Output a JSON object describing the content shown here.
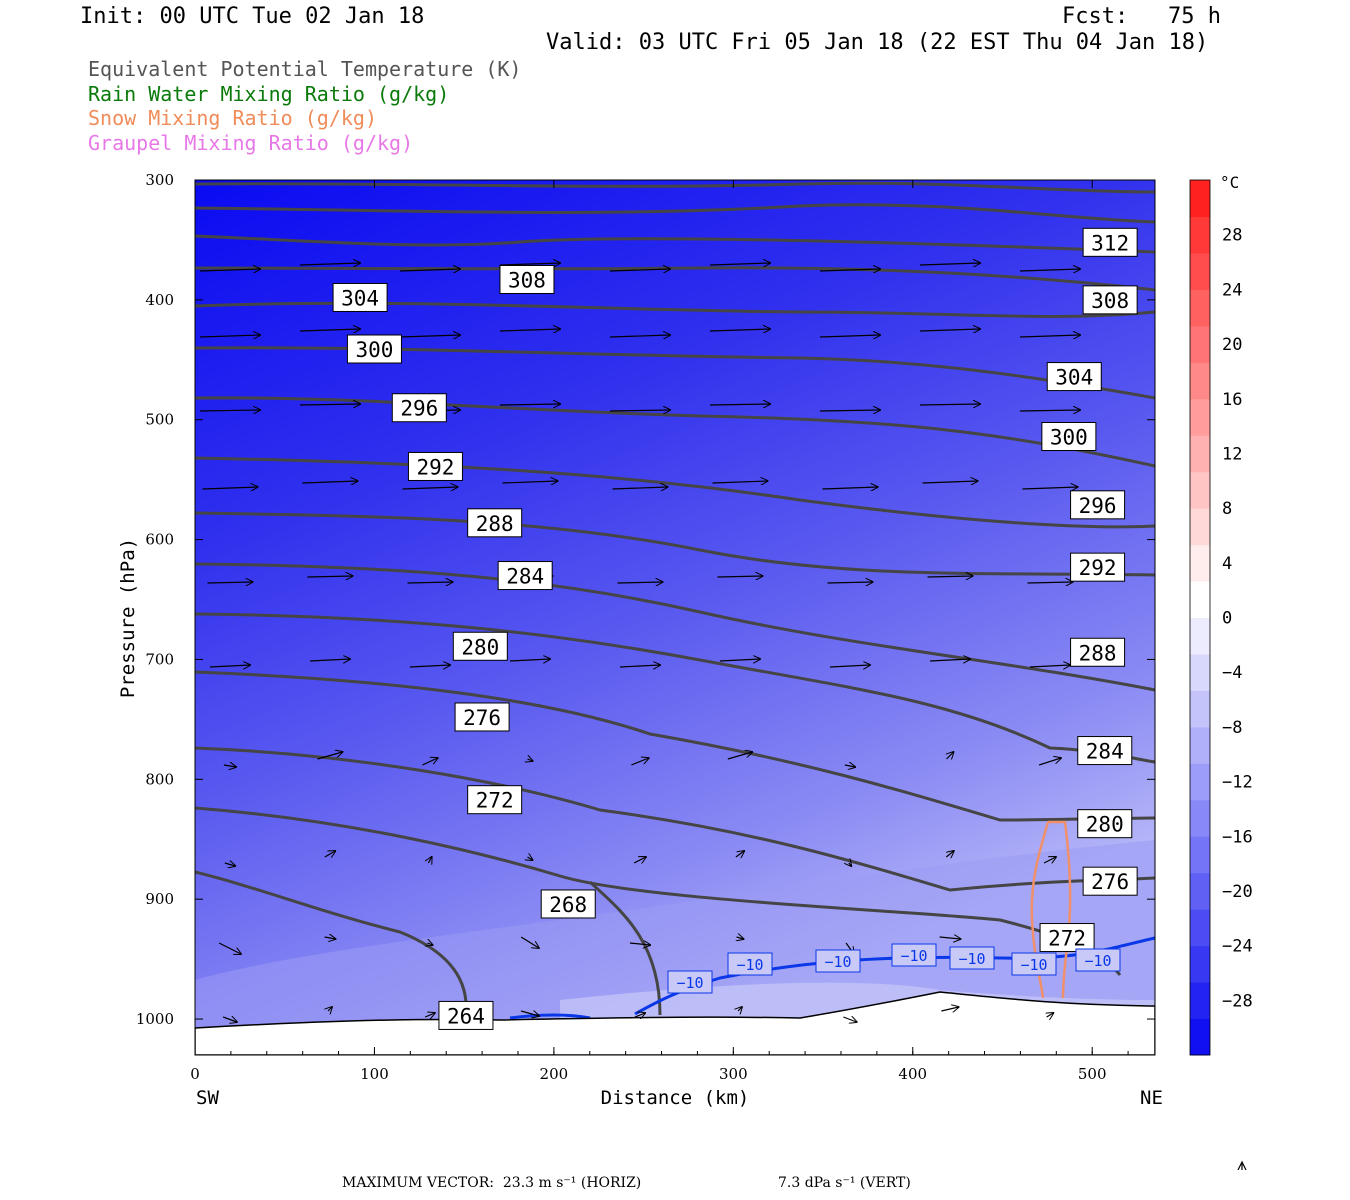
{
  "header": {
    "init": "Init: 00 UTC Tue 02 Jan 18",
    "fcst": "Fcst:   75 h",
    "valid": "Valid: 03 UTC Fri 05 Jan 18 (22 EST Thu 04 Jan 18)"
  },
  "legend": [
    {
      "label": "Equivalent Potential Temperature (K)",
      "color": "#555555"
    },
    {
      "label": "Rain Water Mixing Ratio (g/kg)",
      "color": "#0a7a0a"
    },
    {
      "label": "Snow Mixing Ratio (g/kg)",
      "color": "#f08c5a"
    },
    {
      "label": "Graupel Mixing Ratio (g/kg)",
      "color": "#e878e8"
    }
  ],
  "footer": {
    "max_vector": "MAXIMUM VECTOR:  23.3 m s⁻¹ (HORIZ)",
    "vert": "7.3 dPa s⁻¹ (VERT)"
  },
  "chart_data": {
    "type": "cross-section",
    "xlabel": "Distance (km)",
    "ylabel": "Pressure (hPa)",
    "x_ticks": [
      "0",
      "100",
      "200",
      "300",
      "400",
      "500"
    ],
    "x_tick_values": [
      0,
      100,
      200,
      300,
      400,
      500
    ],
    "y_ticks": [
      "300",
      "400",
      "500",
      "600",
      "700",
      "800",
      "900",
      "1000"
    ],
    "y_tick_values": [
      300,
      400,
      500,
      600,
      700,
      800,
      900,
      1000
    ],
    "xlim": [
      0,
      535
    ],
    "ylim": [
      1030,
      300
    ],
    "left_label": "SW",
    "right_label": "NE",
    "colorbar": {
      "unit": "°C",
      "labels": [
        "28",
        "24",
        "20",
        "16",
        "12",
        "8",
        "4",
        "0",
        "−4",
        "−8",
        "−12",
        "−16",
        "−20",
        "−24",
        "−28"
      ],
      "colors": [
        "#1010f0",
        "#2424f2",
        "#3838f3",
        "#4c4cf4",
        "#6060f5",
        "#7474f6",
        "#8888f8",
        "#9c9cf9",
        "#b0b0fa",
        "#c4c4fb",
        "#d8d8fc",
        "#ececfe",
        "#ffffff",
        "#ffecec",
        "#ffd8d8",
        "#ffc4c4",
        "#ffb0b0",
        "#ff9c9c",
        "#ff8888",
        "#ff7474",
        "#ff6060",
        "#ff4c4c",
        "#ff3838",
        "#ff2020"
      ]
    },
    "theta_e_labels": [
      {
        "value": "312",
        "x": 510,
        "p": 352
      },
      {
        "value": "308",
        "x": 185,
        "p": 383
      },
      {
        "value": "308",
        "x": 510,
        "p": 400
      },
      {
        "value": "304",
        "x": 92,
        "p": 398
      },
      {
        "value": "304",
        "x": 490,
        "p": 464
      },
      {
        "value": "300",
        "x": 100,
        "p": 441
      },
      {
        "value": "300",
        "x": 487,
        "p": 514
      },
      {
        "value": "296",
        "x": 125,
        "p": 490
      },
      {
        "value": "296",
        "x": 503,
        "p": 571
      },
      {
        "value": "292",
        "x": 134,
        "p": 539
      },
      {
        "value": "292",
        "x": 503,
        "p": 623
      },
      {
        "value": "288",
        "x": 167,
        "p": 586
      },
      {
        "value": "288",
        "x": 503,
        "p": 694
      },
      {
        "value": "284",
        "x": 184,
        "p": 630
      },
      {
        "value": "284",
        "x": 507,
        "p": 776
      },
      {
        "value": "280",
        "x": 159,
        "p": 689
      },
      {
        "value": "280",
        "x": 507,
        "p": 837
      },
      {
        "value": "276",
        "x": 160,
        "p": 748
      },
      {
        "value": "276",
        "x": 510,
        "p": 885
      },
      {
        "value": "272",
        "x": 167,
        "p": 817
      },
      {
        "value": "272",
        "x": 486,
        "p": 932
      },
      {
        "value": "268",
        "x": 208,
        "p": 904
      },
      {
        "value": "264",
        "x": 151,
        "p": 997
      }
    ],
    "temp_minus10_labels": [
      "−10",
      "−10",
      "−10",
      "−10",
      "−10",
      "−10",
      "−10"
    ]
  }
}
